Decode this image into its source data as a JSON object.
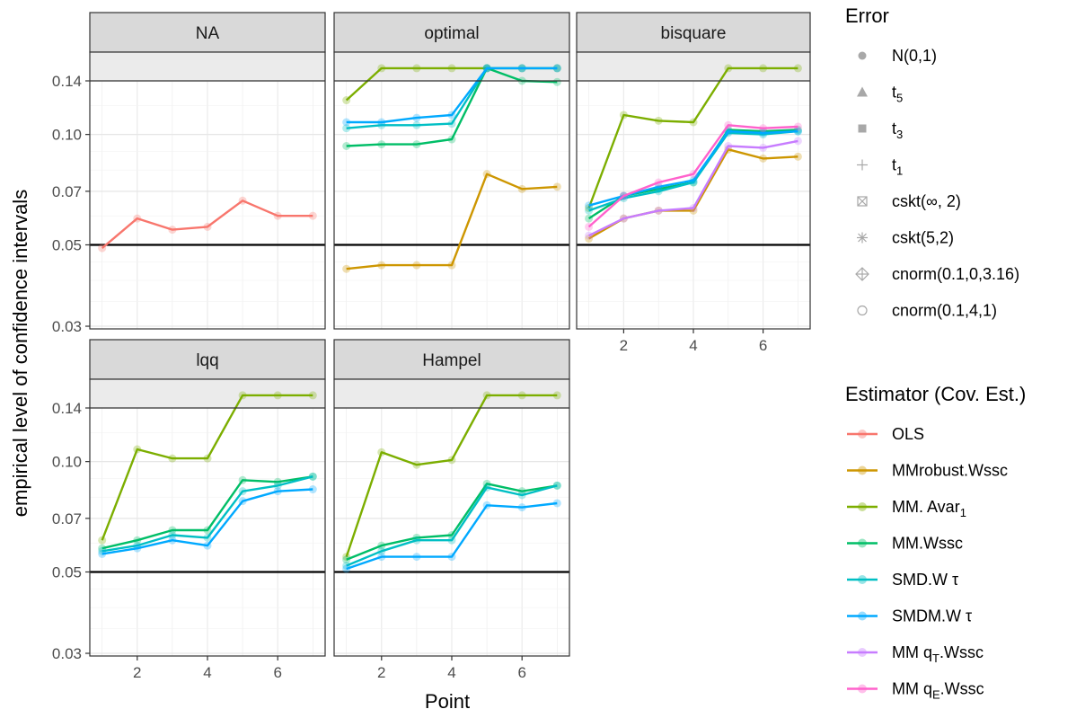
{
  "chart_data": {
    "type": "line",
    "xlabel": "Point",
    "ylabel": "empirical level of confidence intervals",
    "y_scale": "log",
    "ylim": [
      0.0295,
      0.19
    ],
    "xlim": [
      0.65,
      7.35
    ],
    "x_ticks": [
      2,
      4,
      6
    ],
    "y_ticks": [
      0.03,
      0.05,
      0.07,
      0.1,
      0.14
    ],
    "y_tick_labels": [
      "0.03",
      "0.05",
      "0.07",
      "0.10",
      "0.14"
    ],
    "reference_line": 0.05,
    "panel_top_value": 0.14,
    "grid": true,
    "legend_placement": "right",
    "panels": [
      "NA",
      "optimal",
      "bisquare",
      "lqq",
      "Hampel"
    ],
    "x": [
      1,
      2,
      3,
      4,
      5,
      6,
      7
    ],
    "error_legend": {
      "title": "Error",
      "entries": [
        {
          "label": "N(0,1)",
          "shape": "circle-filled"
        },
        {
          "label": "t",
          "subscript": "5",
          "shape": "triangle"
        },
        {
          "label": "t",
          "subscript": "3",
          "shape": "square"
        },
        {
          "label": "t",
          "subscript": "1",
          "shape": "plus"
        },
        {
          "label": "cskt(∞, 2)",
          "shape": "square-cross"
        },
        {
          "label": "cskt(5,2)",
          "shape": "asterisk"
        },
        {
          "label": "cnorm(0.1,0,3.16)",
          "shape": "diamond-plus"
        },
        {
          "label": "cnorm(0.1,4,1)",
          "shape": "circle-open"
        }
      ]
    },
    "estimator_legend": {
      "title": "Estimator (Cov. Est.)",
      "entries": [
        {
          "label": "OLS",
          "color": "#F8766D"
        },
        {
          "label": "MMrobust.Wssc",
          "color": "#CD9600"
        },
        {
          "label": "MM. Avar",
          "subscript": "1",
          "color": "#7CAE00"
        },
        {
          "label": "MM.Wssc",
          "color": "#00BE67"
        },
        {
          "label": "SMD.W τ",
          "color": "#00BFC4"
        },
        {
          "label": "SMDM.W τ",
          "color": "#00A9FF"
        },
        {
          "label": "MM  q",
          "subscript": "T",
          "suffix": ".Wssc",
          "color": "#C77CFF"
        },
        {
          "label": "MM  q",
          "subscript": "E",
          "suffix": ".Wssc",
          "color": "#FF61CC"
        }
      ]
    },
    "series": [
      {
        "panel": "NA",
        "estimator": "OLS",
        "values": [
          0.049,
          0.059,
          0.055,
          0.056,
          0.066,
          0.06,
          0.06
        ]
      },
      {
        "panel": "optimal",
        "estimator": "MMrobust.Wssc",
        "values": [
          0.043,
          0.044,
          0.044,
          0.044,
          0.078,
          0.071,
          0.072
        ]
      },
      {
        "panel": "optimal",
        "estimator": "MM. Avar1",
        "values": [
          0.124,
          0.155,
          0.155,
          0.155,
          0.155,
          0.155,
          0.155
        ]
      },
      {
        "panel": "optimal",
        "estimator": "MM.Wssc",
        "values": [
          0.093,
          0.094,
          0.094,
          0.097,
          0.142,
          0.14,
          0.139
        ]
      },
      {
        "panel": "optimal",
        "estimator": "SMD.W τ",
        "values": [
          0.104,
          0.106,
          0.106,
          0.107,
          0.153,
          0.148,
          0.148
        ]
      },
      {
        "panel": "optimal",
        "estimator": "SMDM.W τ",
        "values": [
          0.108,
          0.108,
          0.111,
          0.113,
          0.155,
          0.151,
          0.151
        ]
      },
      {
        "panel": "bisquare",
        "estimator": "MMrobust.Wssc",
        "values": [
          0.052,
          0.059,
          0.062,
          0.062,
          0.091,
          0.086,
          0.087
        ]
      },
      {
        "panel": "bisquare",
        "estimator": "MM. Avar1",
        "values": [
          0.063,
          0.113,
          0.109,
          0.108,
          0.155,
          0.155,
          0.155
        ]
      },
      {
        "panel": "bisquare",
        "estimator": "MM.Wssc",
        "values": [
          0.059,
          0.068,
          0.071,
          0.074,
          0.103,
          0.102,
          0.103
        ]
      },
      {
        "panel": "bisquare",
        "estimator": "SMD.W τ",
        "values": [
          0.062,
          0.067,
          0.07,
          0.074,
          0.101,
          0.1,
          0.102
        ]
      },
      {
        "panel": "bisquare",
        "estimator": "SMDM.W τ",
        "values": [
          0.064,
          0.068,
          0.072,
          0.075,
          0.102,
          0.101,
          0.102
        ]
      },
      {
        "panel": "bisquare",
        "estimator": "MM qT.Wssc",
        "values": [
          0.053,
          0.059,
          0.062,
          0.063,
          0.093,
          0.092,
          0.096
        ]
      },
      {
        "panel": "bisquare",
        "estimator": "MM qE.Wssc",
        "values": [
          0.056,
          0.068,
          0.074,
          0.078,
          0.106,
          0.104,
          0.105
        ]
      },
      {
        "panel": "lqq",
        "estimator": "MM. Avar1",
        "values": [
          0.061,
          0.108,
          0.102,
          0.102,
          0.155,
          0.155,
          0.155
        ]
      },
      {
        "panel": "lqq",
        "estimator": "MM.Wssc",
        "values": [
          0.058,
          0.061,
          0.065,
          0.065,
          0.089,
          0.088,
          0.091
        ]
      },
      {
        "panel": "lqq",
        "estimator": "SMD.W τ",
        "values": [
          0.057,
          0.059,
          0.063,
          0.062,
          0.083,
          0.086,
          0.091
        ]
      },
      {
        "panel": "lqq",
        "estimator": "SMDM.W τ",
        "values": [
          0.056,
          0.058,
          0.061,
          0.059,
          0.078,
          0.083,
          0.084
        ]
      },
      {
        "panel": "Hampel",
        "estimator": "MM. Avar1",
        "values": [
          0.055,
          0.106,
          0.098,
          0.101,
          0.155,
          0.155,
          0.155
        ]
      },
      {
        "panel": "Hampel",
        "estimator": "MM.Wssc",
        "values": [
          0.054,
          0.059,
          0.062,
          0.063,
          0.087,
          0.083,
          0.086
        ]
      },
      {
        "panel": "Hampel",
        "estimator": "SMD.W τ",
        "values": [
          0.052,
          0.057,
          0.061,
          0.061,
          0.085,
          0.081,
          0.086
        ]
      },
      {
        "panel": "Hampel",
        "estimator": "SMDM.W τ",
        "values": [
          0.051,
          0.055,
          0.055,
          0.055,
          0.076,
          0.075,
          0.077
        ]
      }
    ]
  }
}
